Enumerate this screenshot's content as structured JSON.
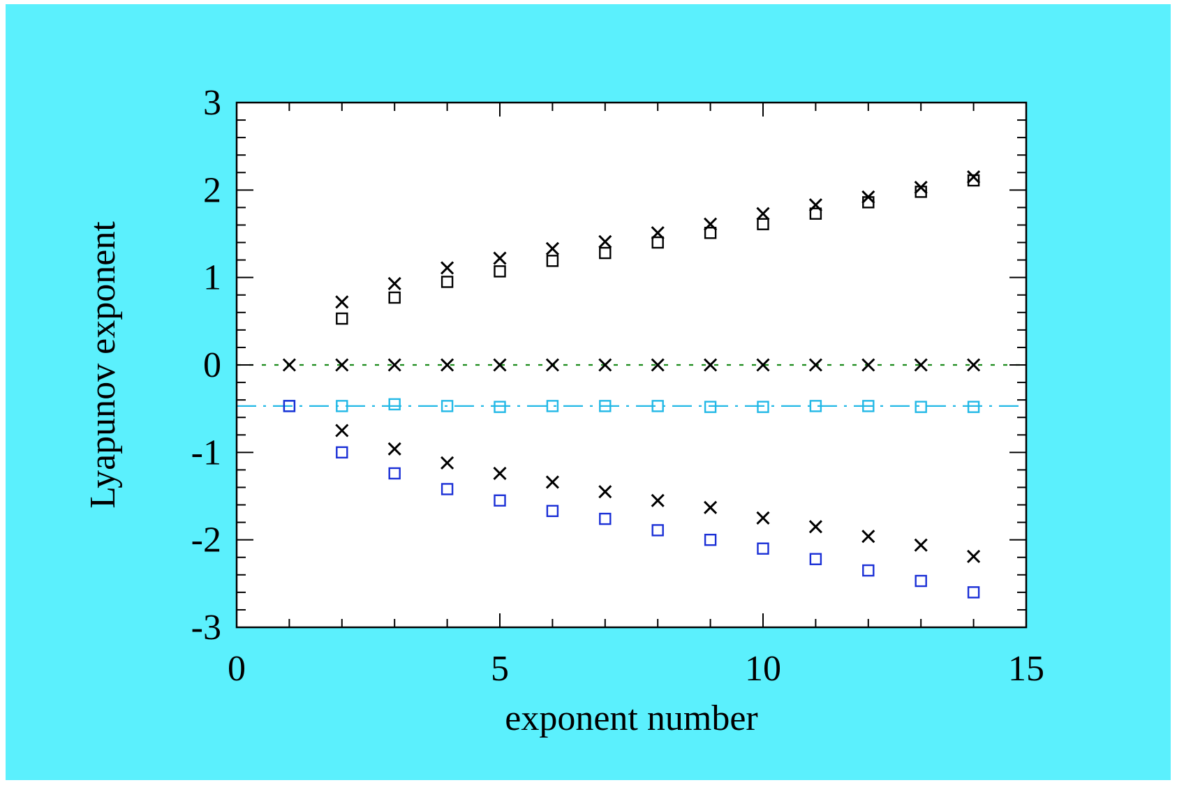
{
  "colors": {
    "background": "#5bf0fd",
    "plot_bg": "#ffffff",
    "black": "#000000",
    "blue": "#1a2fd6",
    "cyan": "#22b8e6",
    "green": "#1a8a1a"
  },
  "chart_data": {
    "type": "scatter",
    "title": "",
    "xlabel": "exponent number",
    "ylabel": "Lyapunov exponent",
    "xlim": [
      0,
      15
    ],
    "ylim": [
      -3,
      3
    ],
    "x_ticks": [
      0,
      5,
      10,
      15
    ],
    "y_ticks": [
      3,
      2,
      1,
      0,
      -1,
      -2,
      -3
    ],
    "x_tick_labels": [
      "0",
      "5",
      "10",
      "15"
    ],
    "y_tick_labels": [
      "3",
      "2",
      "1",
      "0",
      "-1",
      "-2",
      "-3"
    ],
    "grid": false,
    "legend": "none",
    "reference_lines": [
      {
        "y": 0,
        "style": "dotted",
        "color": "green"
      },
      {
        "y": -0.47,
        "style": "dash-dot",
        "color": "cyan"
      }
    ],
    "series": [
      {
        "marker": "x",
        "color": "black",
        "x": [
          2,
          3,
          4,
          5,
          6,
          7,
          8,
          9,
          10,
          11,
          12,
          13,
          14
        ],
        "y": [
          0.72,
          0.93,
          1.11,
          1.22,
          1.33,
          1.41,
          1.51,
          1.61,
          1.73,
          1.83,
          1.92,
          2.03,
          2.15
        ]
      },
      {
        "marker": "x",
        "color": "black",
        "x": [
          1,
          2,
          3,
          4,
          5,
          6,
          7,
          8,
          9,
          10,
          11,
          12,
          13,
          14
        ],
        "y": [
          0,
          0,
          0,
          0,
          0,
          0,
          0,
          0,
          0,
          0,
          0,
          0,
          0,
          0
        ]
      },
      {
        "marker": "x",
        "color": "black",
        "x": [
          2,
          3,
          4,
          5,
          6,
          7,
          8,
          9,
          10,
          11,
          12,
          13,
          14
        ],
        "y": [
          -0.75,
          -0.96,
          -1.12,
          -1.24,
          -1.34,
          -1.45,
          -1.55,
          -1.63,
          -1.75,
          -1.85,
          -1.96,
          -2.06,
          -2.19
        ]
      },
      {
        "marker": "square",
        "color": "black",
        "x": [
          2,
          3,
          4,
          5,
          6,
          7,
          8,
          9,
          10,
          11,
          12,
          13,
          14
        ],
        "y": [
          0.53,
          0.77,
          0.95,
          1.07,
          1.19,
          1.28,
          1.4,
          1.51,
          1.61,
          1.73,
          1.86,
          1.98,
          2.11
        ]
      },
      {
        "marker": "square",
        "color": "cyan",
        "x": [
          1,
          2,
          3,
          4,
          5,
          6,
          7,
          8,
          9,
          10,
          11,
          12,
          13,
          14
        ],
        "y": [
          -0.47,
          -0.47,
          -0.45,
          -0.47,
          -0.48,
          -0.47,
          -0.47,
          -0.47,
          -0.48,
          -0.48,
          -0.47,
          -0.47,
          -0.48,
          -0.48
        ]
      },
      {
        "marker": "square",
        "color": "blue",
        "x": [
          1,
          2,
          3,
          4,
          5,
          6,
          7,
          8,
          9,
          10,
          11,
          12,
          13,
          14
        ],
        "y": [
          -0.47,
          -1.0,
          -1.24,
          -1.42,
          -1.55,
          -1.67,
          -1.76,
          -1.89,
          -2.0,
          -2.1,
          -2.22,
          -2.35,
          -2.47,
          -2.6
        ]
      }
    ]
  }
}
